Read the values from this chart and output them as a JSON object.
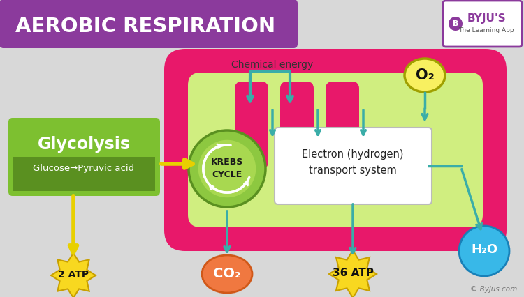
{
  "title": "AEROBIC RESPIRATION",
  "title_bg": "#8B3A9C",
  "title_color": "#FFFFFF",
  "bg_color": "#D8D8D8",
  "chemical_energy_text": "Chemical energy",
  "glycolysis_label": "Glycolysis",
  "glycolysis_sub": "Glucose→Pyruvic acid",
  "glycolysis_bg_top": "#7DC030",
  "glycolysis_bg_bot": "#5A9020",
  "krebs_label": "KREBS\nCYCLE",
  "krebs_bg": "#8DC840",
  "krebs_edge": "#5A9020",
  "electron_label": "Electron (hydrogen)\ntransport system",
  "electron_bg": "#FFFFFF",
  "mito_outer": "#E8186A",
  "mito_inner": "#D0EE80",
  "atp2_label": "2 ATP",
  "atp36_label": "36 ATP",
  "co2_label": "CO₂",
  "o2_label": "O₂",
  "h2o_label": "H₂O",
  "arrow_color": "#3AADA8",
  "yellow_arrow": "#E8D000",
  "atp_color": "#F8D820",
  "atp_edge": "#C8A000",
  "co2_color": "#F07840",
  "co2_edge": "#D05818",
  "o2_color": "#F8F060",
  "o2_edge": "#A0A000",
  "h2o_color": "#38B8E8",
  "h2o_edge": "#1880B8",
  "copyright": "© Byjus.com",
  "byju_border": "#8B3A9C",
  "byju_text": "#8B3A9C",
  "byju_sub": "#555555"
}
